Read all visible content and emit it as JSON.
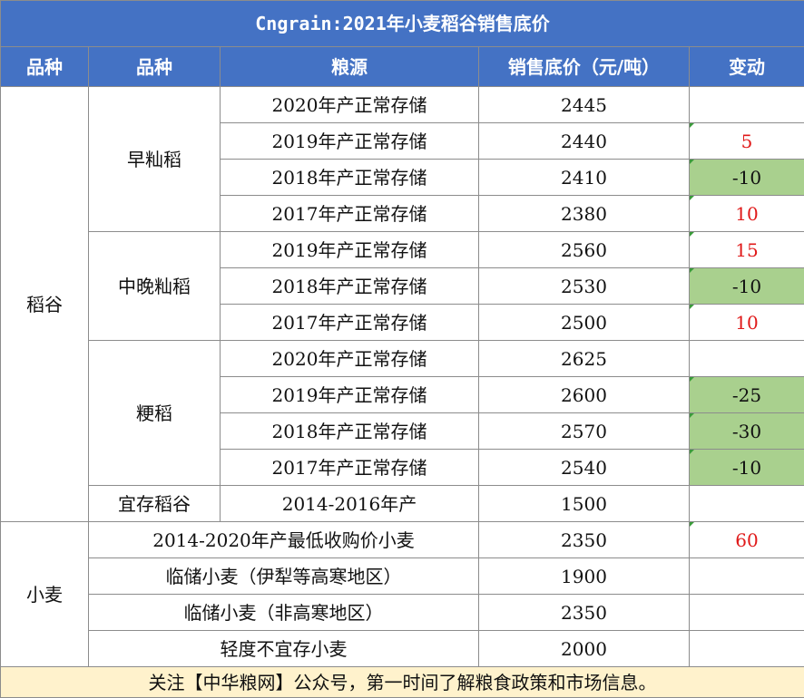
{
  "title": "Cngrain:2021年小麦稻谷销售底价",
  "headers": {
    "category": "品种",
    "variety": "品种",
    "source": "粮源",
    "price": "销售底价（元/吨）",
    "change": "变动"
  },
  "categories": {
    "rice": "稻谷",
    "wheat": "小麦"
  },
  "varieties": {
    "early_indica": "早籼稻",
    "mid_late_indica": "中晚籼稻",
    "japonica": "粳稻",
    "suitable_rice": "宜存稻谷"
  },
  "rows": [
    {
      "source": "2020年产正常存储",
      "price": "2445",
      "change": ""
    },
    {
      "source": "2019年产正常存储",
      "price": "2440",
      "change": "5"
    },
    {
      "source": "2018年产正常存储",
      "price": "2410",
      "change": "-10"
    },
    {
      "source": "2017年产正常存储",
      "price": "2380",
      "change": "10"
    },
    {
      "source": "2019年产正常存储",
      "price": "2560",
      "change": "15"
    },
    {
      "source": "2018年产正常存储",
      "price": "2530",
      "change": "-10"
    },
    {
      "source": "2017年产正常存储",
      "price": "2500",
      "change": "10"
    },
    {
      "source": "2020年产正常存储",
      "price": "2625",
      "change": ""
    },
    {
      "source": "2019年产正常存储",
      "price": "2600",
      "change": "-25"
    },
    {
      "source": "2018年产正常存储",
      "price": "2570",
      "change": "-30"
    },
    {
      "source": "2017年产正常存储",
      "price": "2540",
      "change": "-10"
    },
    {
      "source": "2014-2016年产",
      "price": "1500",
      "change": ""
    },
    {
      "source": "2014-2020年产最低收购价小麦",
      "price": "2350",
      "change": "60"
    },
    {
      "source": "临储小麦（伊犁等高寒地区）",
      "price": "1900",
      "change": ""
    },
    {
      "source": "临储小麦（非高寒地区）",
      "price": "2350",
      "change": ""
    },
    {
      "source": "轻度不宜存小麦",
      "price": "2000",
      "change": ""
    }
  ],
  "footer": "关注【中华粮网】公众号，第一时间了解粮食政策和市场信息。",
  "colors": {
    "header_bg": "#4472c4",
    "increase_text": "#e01a1a",
    "decrease_bg": "#a9d08e",
    "footer_bg": "#fff2cc"
  }
}
